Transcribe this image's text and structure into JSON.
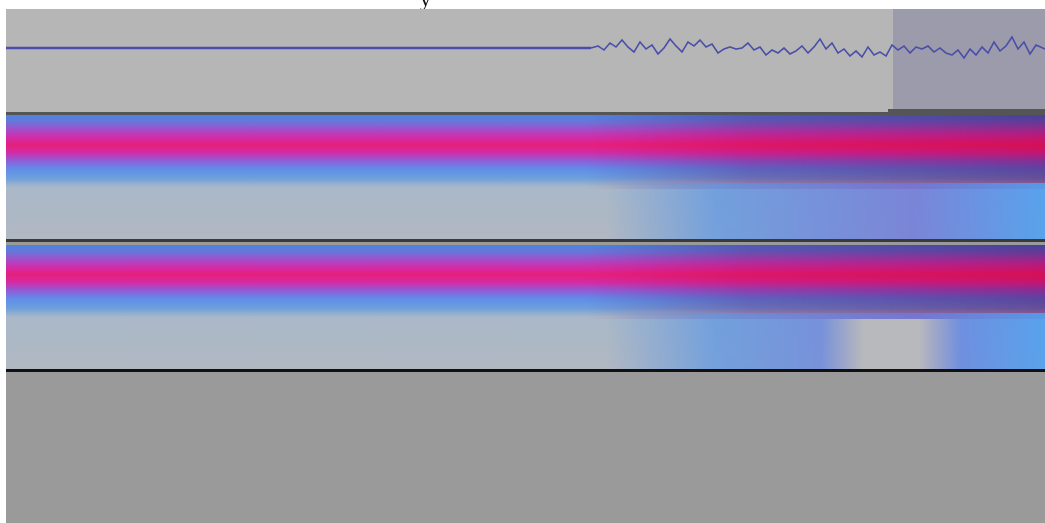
{
  "header": {
    "partial_text": "y"
  },
  "tracks": [
    {
      "kind": "waveform"
    },
    {
      "kind": "spectrogram"
    },
    {
      "kind": "spectrogram"
    }
  ],
  "colors": {
    "background": "#9a9a9a",
    "waveform_track": "#b6b6b6",
    "selection": "#9b9bab",
    "waveform_line": "#4a4ea8",
    "spectrum_magenta": "#e61f7a",
    "spectrum_blue": "#5f8fe8"
  }
}
